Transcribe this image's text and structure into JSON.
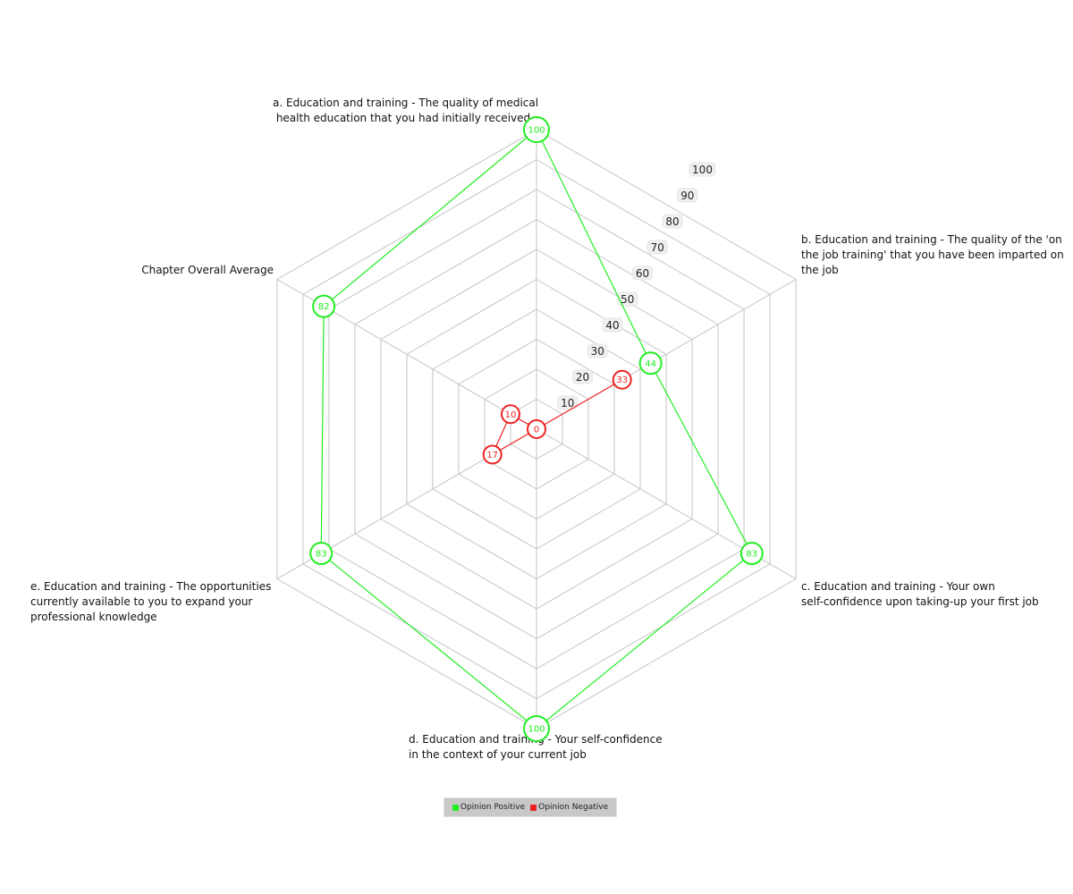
{
  "chart_data": {
    "type": "radar",
    "axes": [
      "a. Education and training - The quality of medical health education that you had initially received",
      "b. Education and training - The quality of the 'on the job training' that you have been imparted on the job",
      "c. Education and training - Your own self-confidence upon taking-up your first job",
      "d. Education and training - Your self-confidence in the context of your current job",
      "e. Education and training - The opportunities currently available to you to expand your professional knowledge",
      "Chapter Overall Average"
    ],
    "axis_label_lines": [
      [
        "a. Education and training - The quality of medical",
        " health education that you had initially received"
      ],
      [
        "b. Education and training - The quality of the 'on",
        "the job training' that you have been imparted on",
        "the job"
      ],
      [
        "c. Education and training - Your own",
        "self-confidence upon taking-up your first job"
      ],
      [
        "d. Education and training - Your self-confidence",
        "in the context of your current job"
      ],
      [
        "e. Education and training - The opportunities",
        "currently available to you to expand your",
        "professional knowledge"
      ],
      [
        "Chapter Overall Average"
      ]
    ],
    "range": [
      0,
      100
    ],
    "ticks": [
      10,
      20,
      30,
      40,
      50,
      60,
      70,
      80,
      90,
      100
    ],
    "grid": true,
    "legend_position": "bottom",
    "series": [
      {
        "name": "Opinion Positive",
        "color": "#22ee22",
        "values": [
          100,
          44,
          83,
          100,
          83,
          82
        ]
      },
      {
        "name": "Opinion Negative",
        "color": "#ee2222",
        "values": [
          0,
          33,
          0,
          0,
          17,
          10
        ]
      }
    ]
  },
  "legend": {
    "positive_label": "Opinion Positive",
    "negative_label": "Opinion Negative"
  }
}
